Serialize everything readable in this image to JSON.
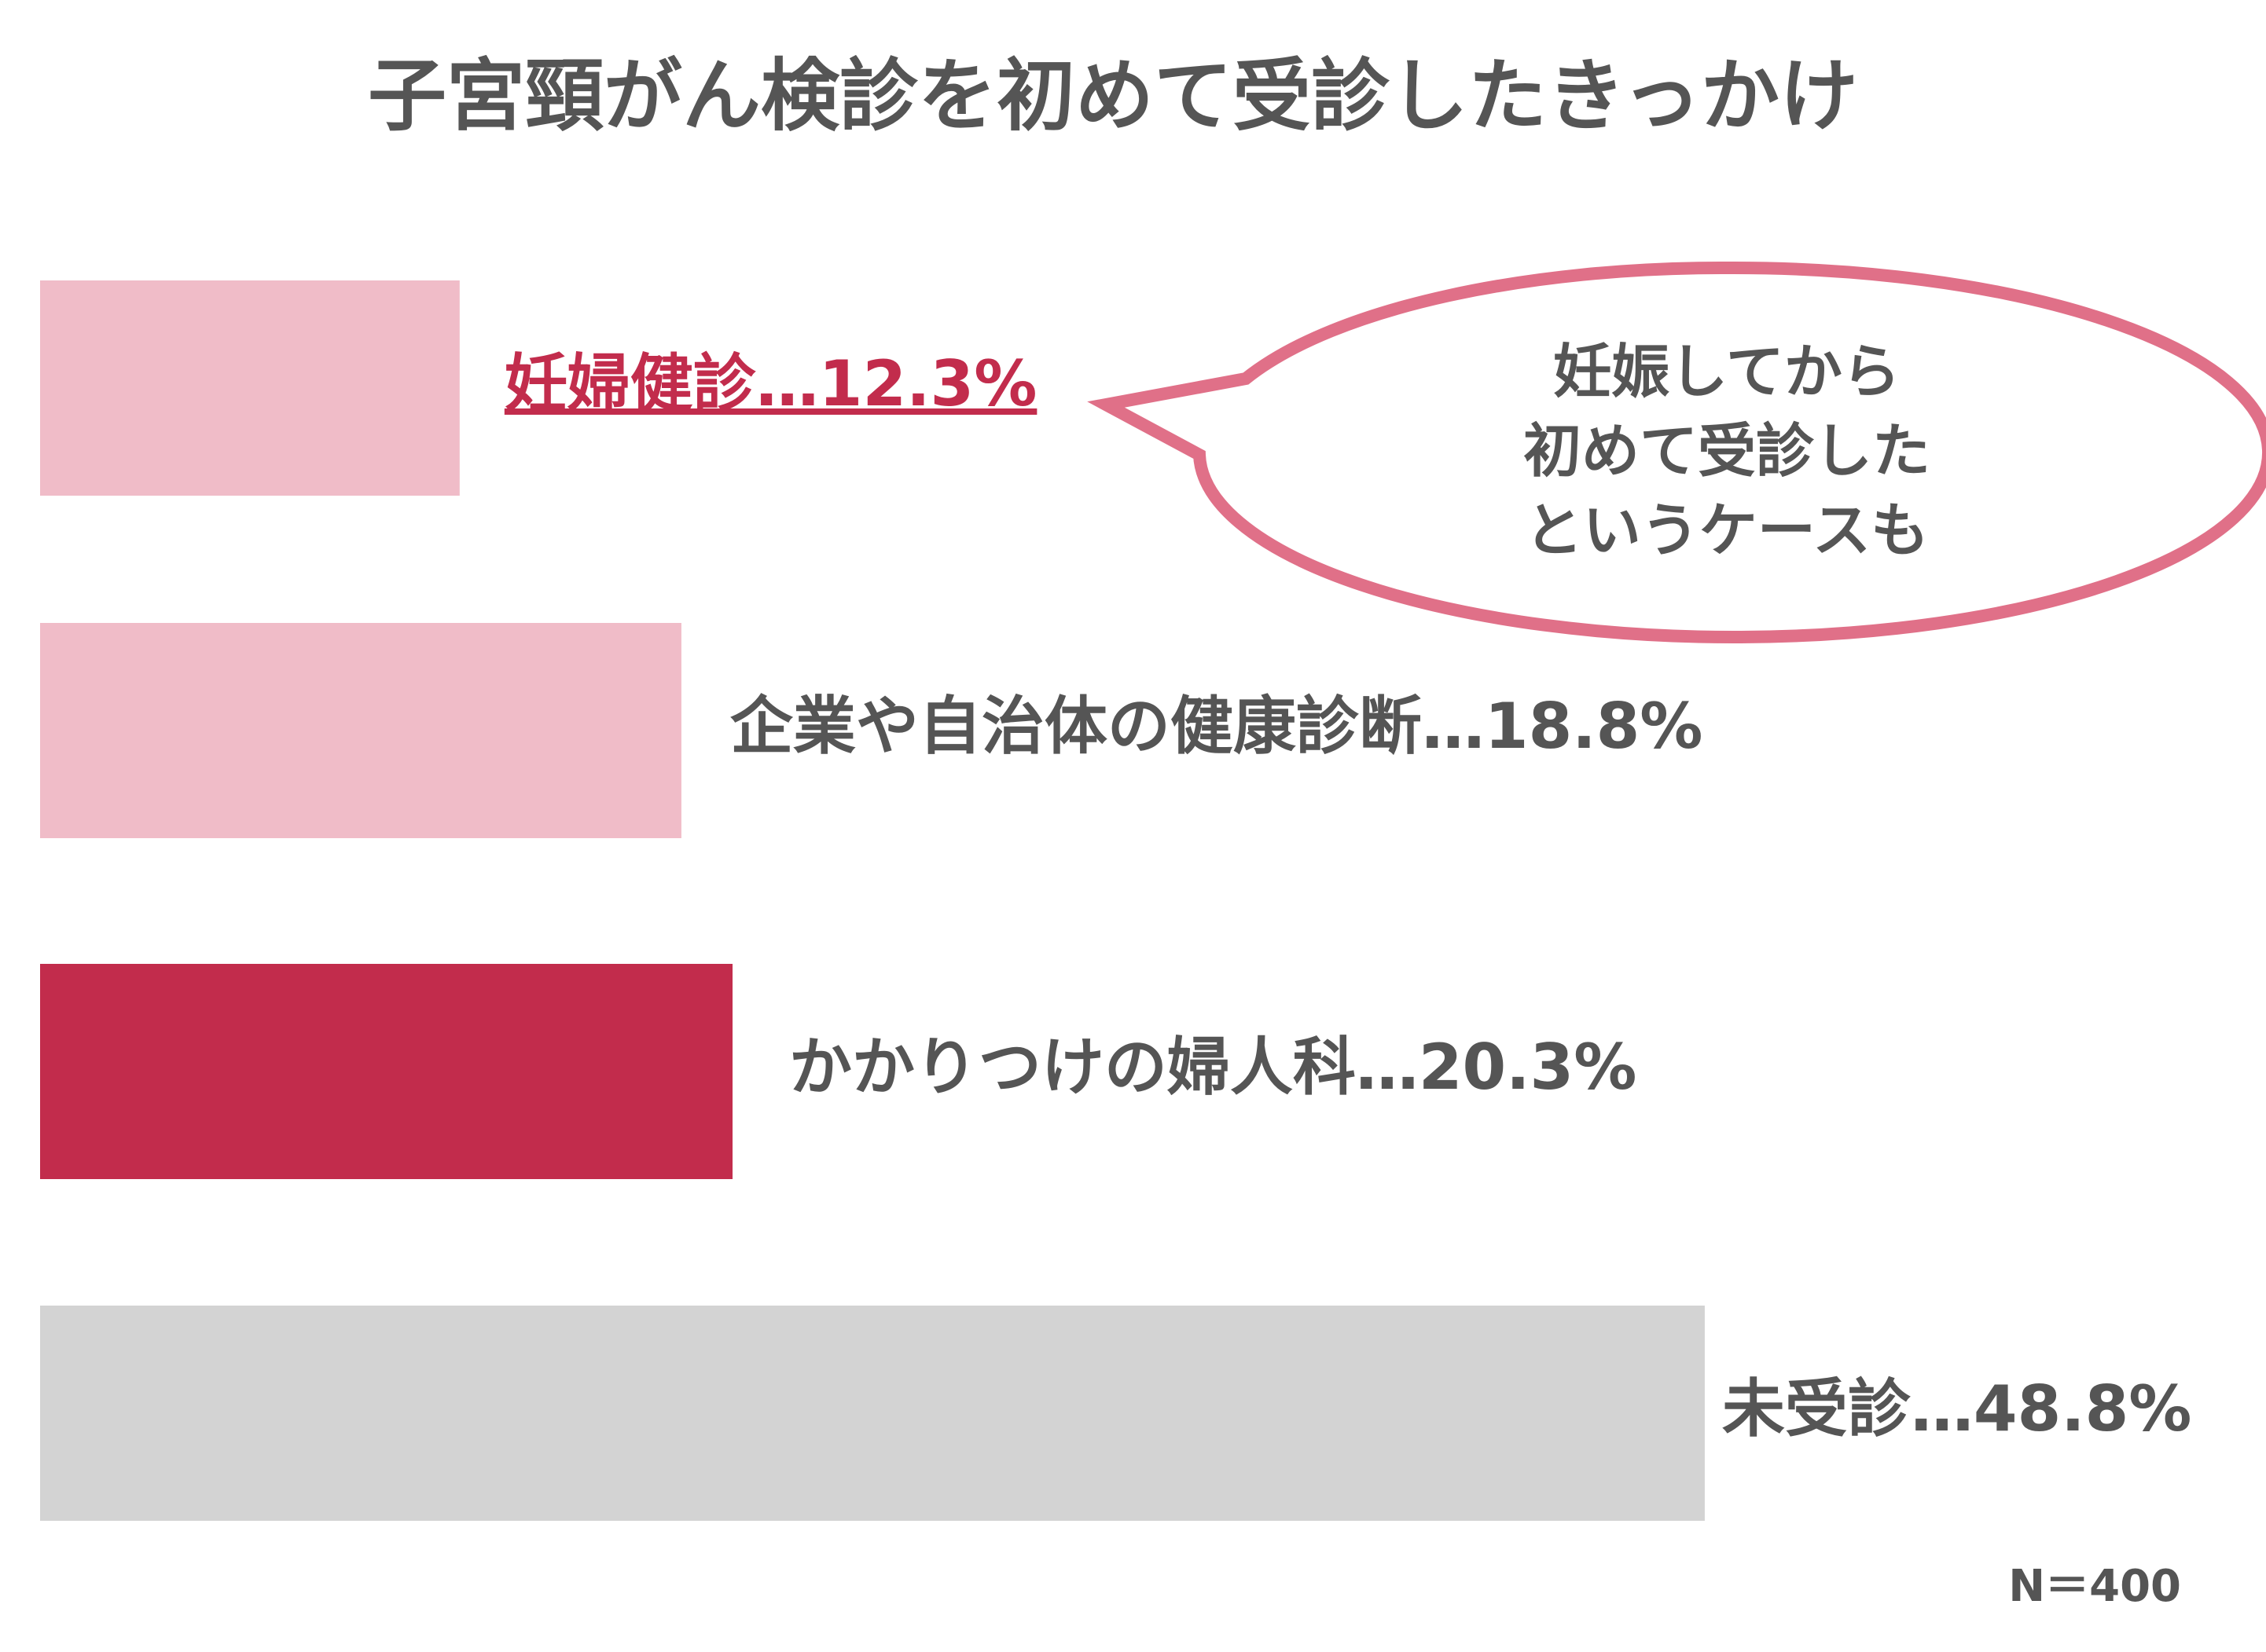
{
  "chart_data": {
    "type": "bar",
    "orientation": "horizontal",
    "title": "子宮頸がん検診を初めて受診したきっかけ",
    "values": [
      12.3,
      18.8,
      20.3,
      48.8
    ],
    "value_labels": [
      "妊婦健診…12.3%",
      "企業や自治体の健康診断…18.8%",
      "かかりつけの婦人科…20.3%",
      "未受診…48.8%"
    ],
    "colors": [
      "#f0bcc8",
      "#f0bcc8",
      "#c22c4c",
      "#d3d3d3"
    ],
    "label_colors": [
      "#c22c4c",
      "#555555",
      "#555555",
      "#555555"
    ],
    "annotation": [
      "妊娠してから",
      "初めて受診した",
      "というケースも"
    ],
    "note": "N＝400"
  }
}
